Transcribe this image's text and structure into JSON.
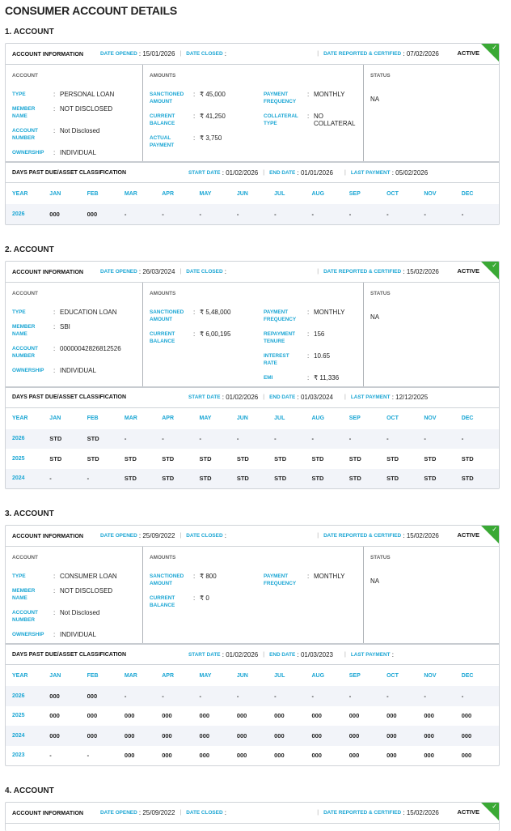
{
  "page_title": "CONSUMER ACCOUNT DETAILS",
  "labels": {
    "account_information": "ACCOUNT INFORMATION",
    "date_opened": "DATE OPENED",
    "date_closed": "DATE CLOSED",
    "date_reported": "DATE REPORTED & CERTIFIED",
    "account_col": "ACCOUNT",
    "amounts_col": "AMOUNTS",
    "status_col": "STATUS",
    "dpd_title": "DAYS PAST DUE/ASSET CLASSIFICATION",
    "start_date": "START DATE",
    "end_date": "END DATE",
    "last_payment": "LAST PAYMENT",
    "year": "YEAR",
    "months": [
      "JAN",
      "FEB",
      "MAR",
      "APR",
      "MAY",
      "JUN",
      "JUL",
      "AUG",
      "SEP",
      "OCT",
      "NOV",
      "DEC"
    ]
  },
  "colors": {
    "accent": "#1ba6d4",
    "active_green": "#3aa935",
    "row_alt": "#f2f4f9"
  },
  "accounts": [
    {
      "title": "1. ACCOUNT",
      "date_opened": "15/01/2026",
      "date_closed": "",
      "date_reported": "07/02/2026",
      "status_badge": "ACTIVE",
      "badge_icon": "check-icon",
      "account_fields": [
        {
          "label": "TYPE",
          "value": "PERSONAL LOAN"
        },
        {
          "label": "MEMBER NAME",
          "value": "NOT DISCLOSED"
        },
        {
          "label": "ACCOUNT NUMBER",
          "value": "Not Disclosed"
        },
        {
          "label": "OWNERSHIP",
          "value": "INDIVIDUAL"
        }
      ],
      "amounts_left": [
        {
          "label": "SANCTIONED AMOUNT",
          "value": "₹ 45,000"
        },
        {
          "label": "CURRENT BALANCE",
          "value": "₹ 41,250"
        },
        {
          "label": "ACTUAL PAYMENT",
          "value": "₹ 3,750"
        }
      ],
      "amounts_right": [
        {
          "label": "PAYMENT FREQUENCY",
          "value": "MONTHLY"
        },
        {
          "label": "COLLATERAL TYPE",
          "value": "NO COLLATERAL"
        }
      ],
      "status": "NA",
      "dpd": {
        "start_date": "01/02/2026",
        "end_date": "01/01/2026",
        "last_payment": "05/02/2026",
        "rows": [
          {
            "year": "2026",
            "values": [
              "000",
              "000",
              "-",
              "-",
              "-",
              "-",
              "-",
              "-",
              "-",
              "-",
              "-",
              "-"
            ]
          }
        ]
      }
    },
    {
      "title": "2. ACCOUNT",
      "date_opened": "26/03/2024",
      "date_closed": "",
      "date_reported": "15/02/2026",
      "status_badge": "ACTIVE",
      "badge_icon": "check-icon",
      "account_fields": [
        {
          "label": "TYPE",
          "value": "EDUCATION LOAN"
        },
        {
          "label": "MEMBER NAME",
          "value": "SBI"
        },
        {
          "label": "ACCOUNT NUMBER",
          "value": "00000042826812526"
        },
        {
          "label": "OWNERSHIP",
          "value": "INDIVIDUAL"
        }
      ],
      "amounts_left": [
        {
          "label": "SANCTIONED AMOUNT",
          "value": "₹ 5,48,000"
        },
        {
          "label": "CURRENT BALANCE",
          "value": "₹ 6,00,195"
        }
      ],
      "amounts_right": [
        {
          "label": "PAYMENT FREQUENCY",
          "value": "MONTHLY"
        },
        {
          "label": "REPAYMENT TENURE",
          "value": "156"
        },
        {
          "label": "INTEREST RATE",
          "value": "10.65"
        },
        {
          "label": "EMI",
          "value": "₹ 11,336"
        }
      ],
      "status": "NA",
      "dpd": {
        "start_date": "01/02/2026",
        "end_date": "01/03/2024",
        "last_payment": "12/12/2025",
        "rows": [
          {
            "year": "2026",
            "values": [
              "STD",
              "STD",
              "-",
              "-",
              "-",
              "-",
              "-",
              "-",
              "-",
              "-",
              "-",
              "-"
            ]
          },
          {
            "year": "2025",
            "values": [
              "STD",
              "STD",
              "STD",
              "STD",
              "STD",
              "STD",
              "STD",
              "STD",
              "STD",
              "STD",
              "STD",
              "STD"
            ]
          },
          {
            "year": "2024",
            "values": [
              "-",
              "-",
              "STD",
              "STD",
              "STD",
              "STD",
              "STD",
              "STD",
              "STD",
              "STD",
              "STD",
              "STD"
            ]
          }
        ]
      }
    },
    {
      "title": "3. ACCOUNT",
      "date_opened": "25/09/2022",
      "date_closed": "",
      "date_reported": "15/02/2026",
      "status_badge": "ACTIVE",
      "badge_icon": "check-icon",
      "account_fields": [
        {
          "label": "TYPE",
          "value": "CONSUMER LOAN"
        },
        {
          "label": "MEMBER NAME",
          "value": "NOT DISCLOSED"
        },
        {
          "label": "ACCOUNT NUMBER",
          "value": "Not Disclosed"
        },
        {
          "label": "OWNERSHIP",
          "value": "INDIVIDUAL"
        }
      ],
      "amounts_left": [
        {
          "label": "SANCTIONED AMOUNT",
          "value": "₹ 800"
        },
        {
          "label": "CURRENT BALANCE",
          "value": "₹ 0"
        }
      ],
      "amounts_right": [
        {
          "label": "PAYMENT FREQUENCY",
          "value": "MONTHLY"
        }
      ],
      "status": "NA",
      "dpd": {
        "start_date": "01/02/2026",
        "end_date": "01/03/2023",
        "last_payment": "",
        "rows": [
          {
            "year": "2026",
            "values": [
              "000",
              "000",
              "-",
              "-",
              "-",
              "-",
              "-",
              "-",
              "-",
              "-",
              "-",
              "-"
            ]
          },
          {
            "year": "2025",
            "values": [
              "000",
              "000",
              "000",
              "000",
              "000",
              "000",
              "000",
              "000",
              "000",
              "000",
              "000",
              "000"
            ]
          },
          {
            "year": "2024",
            "values": [
              "000",
              "000",
              "000",
              "000",
              "000",
              "000",
              "000",
              "000",
              "000",
              "000",
              "000",
              "000"
            ]
          },
          {
            "year": "2023",
            "values": [
              "-",
              "-",
              "000",
              "000",
              "000",
              "000",
              "000",
              "000",
              "000",
              "000",
              "000",
              "000"
            ]
          }
        ]
      }
    },
    {
      "title": "4. ACCOUNT",
      "date_opened": "25/09/2022",
      "date_closed": "",
      "date_reported": "15/02/2026",
      "status_badge": "ACTIVE",
      "badge_icon": "check-icon"
    }
  ]
}
